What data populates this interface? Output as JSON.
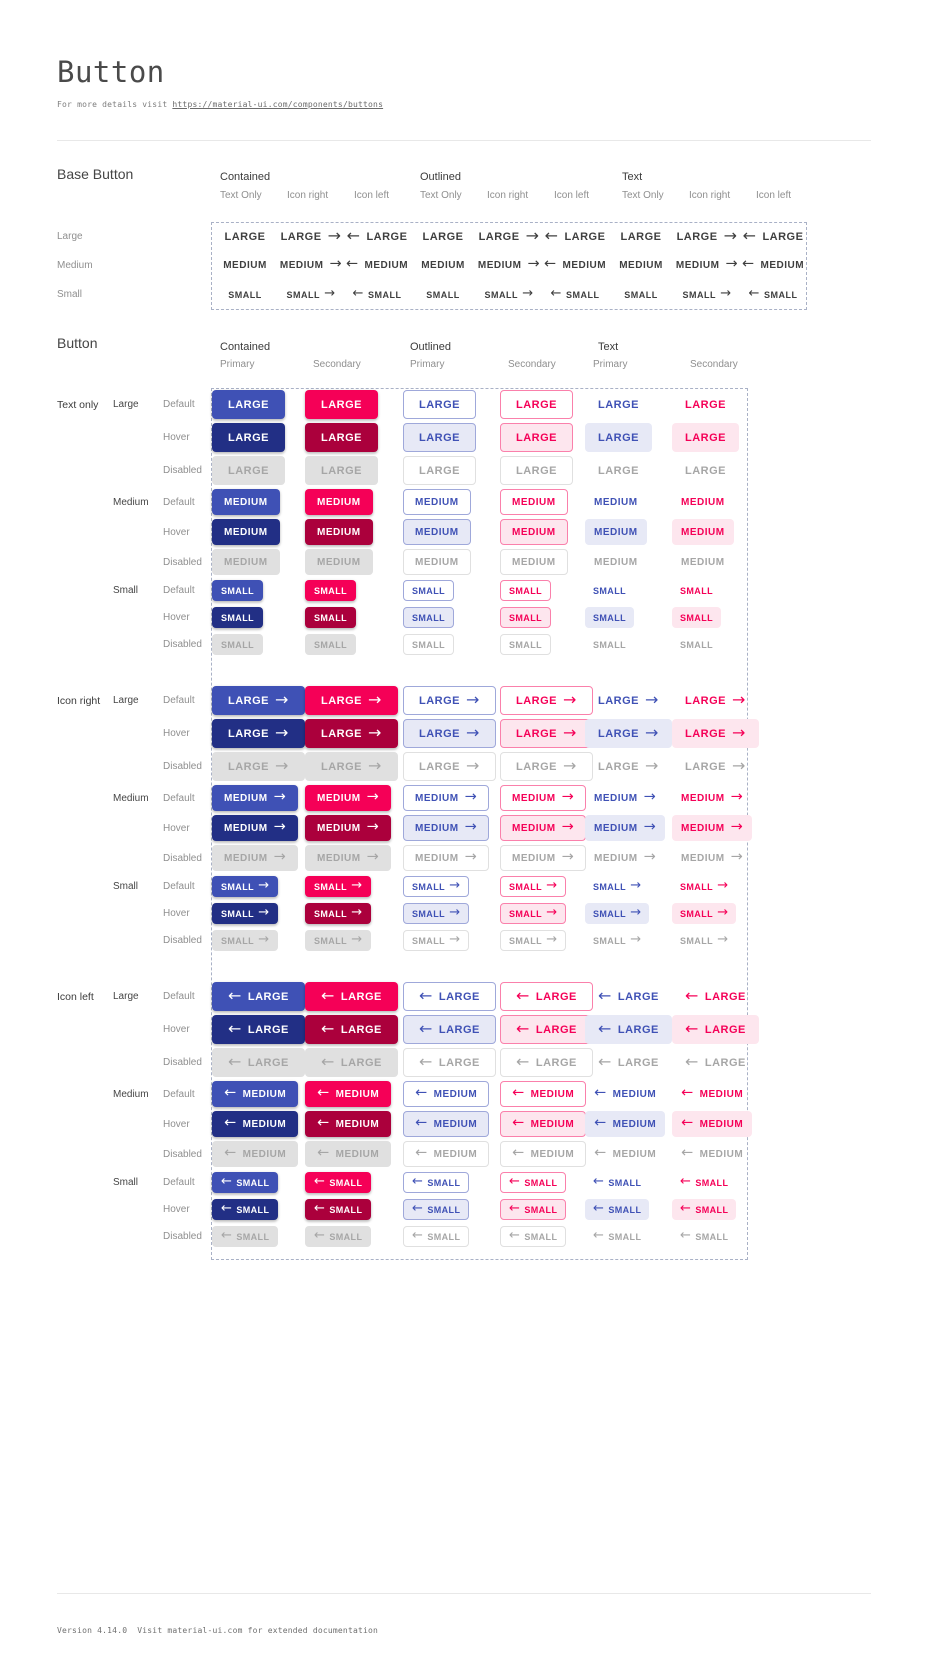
{
  "header": {
    "title": "Button",
    "subtitle_prefix": "For more details visit ",
    "subtitle_link": "https://material-ui.com/components/buttons"
  },
  "icons": {
    "arrow_right": "→",
    "arrow_left": "←"
  },
  "base_section": {
    "title": "Base Button",
    "group_headers": [
      "Contained",
      "Outlined",
      "Text"
    ],
    "variant_headers": [
      "Text Only",
      "Icon right",
      "Icon left"
    ],
    "rows": [
      {
        "label": "Large",
        "button_text": "LARGE"
      },
      {
        "label": "Medium",
        "button_text": "MEDIUM"
      },
      {
        "label": "Small",
        "button_text": "SMALL"
      }
    ]
  },
  "button_section": {
    "title": "Button",
    "group_headers": [
      {
        "label": "Contained",
        "subcolumns": [
          "Primary",
          "Secondary"
        ]
      },
      {
        "label": "Outlined",
        "subcolumns": [
          "Primary",
          "Secondary"
        ]
      },
      {
        "label": "Text",
        "subcolumns": [
          "Primary",
          "Secondary"
        ]
      }
    ],
    "row_groups": [
      {
        "label": "Text only",
        "variant": "text-only"
      },
      {
        "label": "Icon right",
        "variant": "icon-right"
      },
      {
        "label": "Icon left",
        "variant": "icon-left"
      }
    ],
    "sizes": [
      {
        "label": "Large",
        "button_text": "LARGE"
      },
      {
        "label": "Medium",
        "button_text": "MEDIUM"
      },
      {
        "label": "Small",
        "button_text": "SMALL"
      }
    ],
    "states": [
      "Default",
      "Hover",
      "Disabled"
    ]
  },
  "footer": {
    "text": "Version 4.14.0  Visit material-ui.com for extended documentation"
  },
  "colors": {
    "primary": "#3F51B5",
    "primary_dark": "#222F85",
    "secondary": "#F50057",
    "secondary_dark": "#AB003C",
    "primary_tint": "#E7E9F6",
    "secondary_tint": "#FDE6EE",
    "outline_primary": "#9FA8DA",
    "outline_secondary": "#FA80AB",
    "disabled_bg": "#E0E0E0",
    "disabled_text": "#A6A6A6",
    "disabled_border": "#E0E0E0",
    "base_text": "#3F3F3F",
    "dash_border": "#A9B1C6",
    "divider": "#E8E8E8"
  }
}
